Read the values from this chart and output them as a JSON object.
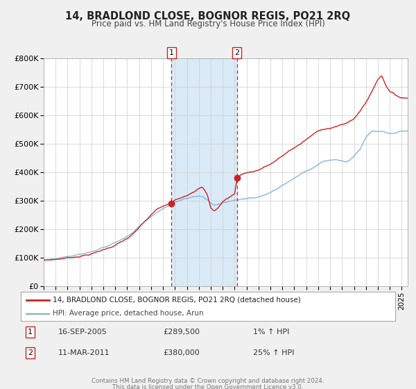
{
  "title": "14, BRADLOND CLOSE, BOGNOR REGIS, PO21 2RQ",
  "subtitle": "Price paid vs. HM Land Registry's House Price Index (HPI)",
  "ylim": [
    0,
    800000
  ],
  "yticks": [
    0,
    100000,
    200000,
    300000,
    400000,
    500000,
    600000,
    700000,
    800000
  ],
  "ytick_labels": [
    "£0",
    "£100K",
    "£200K",
    "£300K",
    "£400K",
    "£500K",
    "£600K",
    "£700K",
    "£800K"
  ],
  "xlim_start": 1995.0,
  "xlim_end": 2025.5,
  "sale1_x": 2005.71,
  "sale1_y": 289500,
  "sale1_label": "1",
  "sale1_date": "16-SEP-2005",
  "sale1_price": "£289,500",
  "sale1_hpi": "1% ↑ HPI",
  "sale2_x": 2011.19,
  "sale2_y": 380000,
  "sale2_label": "2",
  "sale2_date": "11-MAR-2011",
  "sale2_price": "£380,000",
  "sale2_hpi": "25% ↑ HPI",
  "shaded_start": 2005.71,
  "shaded_end": 2011.19,
  "line1_color": "#cc2222",
  "line2_color": "#7bafd4",
  "background_color": "#f0f0f0",
  "plot_bg_color": "#ffffff",
  "grid_color": "#cccccc",
  "shade_color": "#daeaf7",
  "legend1_text": "14, BRADLOND CLOSE, BOGNOR REGIS, PO21 2RQ (detached house)",
  "legend2_text": "HPI: Average price, detached house, Arun",
  "footer1": "Contains HM Land Registry data © Crown copyright and database right 2024.",
  "footer2": "This data is licensed under the Open Government Licence v3.0.",
  "red_anchors": [
    [
      1995.0,
      90000
    ],
    [
      1995.5,
      91000
    ],
    [
      1996.0,
      93000
    ],
    [
      1996.5,
      96000
    ],
    [
      1997.0,
      99000
    ],
    [
      1997.5,
      102000
    ],
    [
      1998.0,
      107000
    ],
    [
      1998.5,
      111000
    ],
    [
      1999.0,
      116000
    ],
    [
      1999.5,
      122000
    ],
    [
      2000.0,
      130000
    ],
    [
      2000.5,
      138000
    ],
    [
      2001.0,
      148000
    ],
    [
      2001.5,
      158000
    ],
    [
      2002.0,
      170000
    ],
    [
      2002.5,
      185000
    ],
    [
      2003.0,
      205000
    ],
    [
      2003.5,
      228000
    ],
    [
      2004.0,
      248000
    ],
    [
      2004.5,
      268000
    ],
    [
      2005.0,
      278000
    ],
    [
      2005.5,
      285000
    ],
    [
      2005.71,
      289500
    ],
    [
      2006.0,
      298000
    ],
    [
      2006.5,
      310000
    ],
    [
      2007.0,
      320000
    ],
    [
      2007.5,
      335000
    ],
    [
      2008.0,
      348000
    ],
    [
      2008.3,
      352000
    ],
    [
      2008.7,
      325000
    ],
    [
      2009.0,
      278000
    ],
    [
      2009.3,
      268000
    ],
    [
      2009.6,
      278000
    ],
    [
      2010.0,
      300000
    ],
    [
      2010.5,
      315000
    ],
    [
      2011.0,
      328000
    ],
    [
      2011.19,
      380000
    ],
    [
      2011.5,
      395000
    ],
    [
      2012.0,
      405000
    ],
    [
      2012.5,
      408000
    ],
    [
      2013.0,
      415000
    ],
    [
      2013.5,
      425000
    ],
    [
      2014.0,
      435000
    ],
    [
      2014.5,
      448000
    ],
    [
      2015.0,
      462000
    ],
    [
      2015.5,
      478000
    ],
    [
      2016.0,
      492000
    ],
    [
      2016.5,
      505000
    ],
    [
      2017.0,
      520000
    ],
    [
      2017.5,
      535000
    ],
    [
      2018.0,
      548000
    ],
    [
      2018.5,
      558000
    ],
    [
      2019.0,
      562000
    ],
    [
      2019.5,
      568000
    ],
    [
      2020.0,
      572000
    ],
    [
      2020.5,
      580000
    ],
    [
      2021.0,
      595000
    ],
    [
      2021.5,
      620000
    ],
    [
      2022.0,
      652000
    ],
    [
      2022.5,
      690000
    ],
    [
      2023.0,
      735000
    ],
    [
      2023.3,
      750000
    ],
    [
      2023.7,
      715000
    ],
    [
      2024.0,
      695000
    ],
    [
      2024.5,
      680000
    ],
    [
      2025.0,
      672000
    ]
  ],
  "blue_anchors": [
    [
      1995.0,
      90000
    ],
    [
      1995.5,
      91000
    ],
    [
      1996.0,
      93000
    ],
    [
      1996.5,
      96000
    ],
    [
      1997.0,
      99000
    ],
    [
      1997.5,
      102000
    ],
    [
      1998.0,
      107000
    ],
    [
      1998.5,
      111000
    ],
    [
      1999.0,
      116000
    ],
    [
      1999.5,
      122000
    ],
    [
      2000.0,
      130000
    ],
    [
      2000.5,
      138000
    ],
    [
      2001.0,
      148000
    ],
    [
      2001.5,
      158000
    ],
    [
      2002.0,
      170000
    ],
    [
      2002.5,
      185000
    ],
    [
      2003.0,
      205000
    ],
    [
      2003.5,
      225000
    ],
    [
      2004.0,
      243000
    ],
    [
      2004.5,
      260000
    ],
    [
      2005.0,
      272000
    ],
    [
      2005.5,
      282000
    ],
    [
      2005.71,
      289000
    ],
    [
      2006.0,
      296000
    ],
    [
      2006.5,
      305000
    ],
    [
      2007.0,
      312000
    ],
    [
      2007.5,
      318000
    ],
    [
      2008.0,
      320000
    ],
    [
      2008.3,
      318000
    ],
    [
      2008.7,
      308000
    ],
    [
      2009.0,
      296000
    ],
    [
      2009.3,
      290000
    ],
    [
      2009.6,
      292000
    ],
    [
      2010.0,
      297000
    ],
    [
      2010.5,
      303000
    ],
    [
      2011.0,
      307000
    ],
    [
      2011.19,
      308000
    ],
    [
      2011.5,
      310000
    ],
    [
      2012.0,
      312000
    ],
    [
      2012.5,
      315000
    ],
    [
      2013.0,
      320000
    ],
    [
      2013.5,
      328000
    ],
    [
      2014.0,
      338000
    ],
    [
      2014.5,
      350000
    ],
    [
      2015.0,
      365000
    ],
    [
      2015.5,
      378000
    ],
    [
      2016.0,
      392000
    ],
    [
      2016.5,
      405000
    ],
    [
      2017.0,
      415000
    ],
    [
      2017.5,
      425000
    ],
    [
      2018.0,
      438000
    ],
    [
      2018.5,
      450000
    ],
    [
      2019.0,
      452000
    ],
    [
      2019.5,
      453000
    ],
    [
      2020.0,
      448000
    ],
    [
      2020.3,
      442000
    ],
    [
      2020.6,
      448000
    ],
    [
      2021.0,
      462000
    ],
    [
      2021.5,
      485000
    ],
    [
      2022.0,
      525000
    ],
    [
      2022.5,
      548000
    ],
    [
      2023.0,
      548000
    ],
    [
      2023.5,
      545000
    ],
    [
      2024.0,
      538000
    ],
    [
      2024.5,
      542000
    ],
    [
      2025.0,
      548000
    ]
  ]
}
